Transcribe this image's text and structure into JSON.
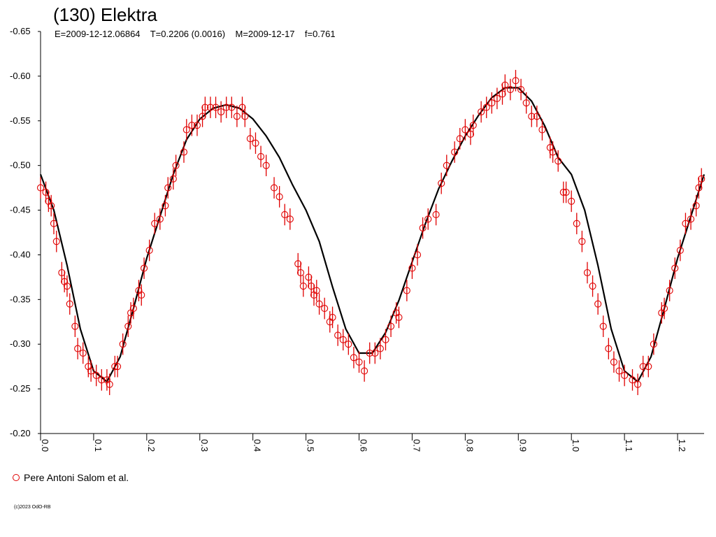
{
  "chart_data": {
    "type": "scatter",
    "title": "(130) Elektra",
    "subtitle": "E=2009-12-12.06864    T=0.2206 (0.0016)    M=2009-12-17    f=0.761",
    "footer": "(c)2023 OdO-RB",
    "xlim": [
      0,
      1.25
    ],
    "ylim": [
      -0.2,
      -0.65
    ],
    "xticks": [
      {
        "value": 0,
        "label": "0.0"
      },
      0.1,
      0.2,
      0.3,
      0.4,
      0.5,
      0.6,
      0.7,
      0.8,
      0.9,
      {
        "value": 1,
        "label": "1.0"
      },
      1.1,
      1.2
    ],
    "yticks": [
      -0.65,
      {
        "value": -0.6,
        "label": "-0.60"
      },
      -0.55,
      {
        "value": -0.5,
        "label": "-0.50"
      },
      -0.45,
      {
        "value": -0.4,
        "label": "-0.40"
      },
      -0.35,
      {
        "value": -0.3,
        "label": "-0.30"
      },
      -0.25,
      {
        "value": -0.2,
        "label": "-0.20"
      }
    ],
    "error": 0.012,
    "series": [
      {
        "name": "Pere Antoni Salom et al.",
        "color": "#e00000",
        "x": [
          0.0,
          0.01,
          0.015,
          0.02,
          0.025,
          0.03,
          0.04,
          0.045,
          0.05,
          0.055,
          0.065,
          0.07,
          0.08,
          0.09,
          0.095,
          0.105,
          0.115,
          0.125,
          0.13,
          0.14,
          0.145,
          0.155,
          0.165,
          0.17,
          0.175,
          0.185,
          0.19,
          0.195,
          0.205,
          0.215,
          0.225,
          0.235,
          0.24,
          0.25,
          0.255,
          0.27,
          0.275,
          0.285,
          0.295,
          0.305,
          0.31,
          0.32,
          0.33,
          0.34,
          0.35,
          0.36,
          0.37,
          0.38,
          0.385,
          0.395,
          0.405,
          0.415,
          0.425,
          0.44,
          0.45,
          0.46,
          0.47,
          0.485,
          0.49,
          0.495,
          0.505,
          0.51,
          0.515,
          0.52,
          0.525,
          0.535,
          0.545,
          0.55,
          0.56,
          0.57,
          0.58,
          0.59,
          0.6,
          0.61,
          0.62,
          0.63,
          0.64,
          0.65,
          0.66,
          0.67,
          0.675,
          0.69,
          0.7,
          0.71,
          0.72,
          0.73,
          0.745,
          0.755,
          0.765,
          0.78,
          0.79,
          0.8,
          0.81,
          0.815,
          0.83,
          0.84,
          0.85,
          0.86,
          0.87,
          0.875,
          0.885,
          0.895,
          0.905,
          0.915,
          0.925,
          0.935,
          0.945,
          0.96,
          0.965,
          0.975,
          0.985,
          0.99,
          1.0,
          1.01,
          1.02,
          1.03,
          1.04,
          1.05,
          1.06,
          1.07,
          1.08,
          1.09,
          1.1,
          1.115,
          1.125,
          1.135,
          1.145,
          1.155,
          1.17,
          1.175,
          1.185,
          1.195,
          1.205,
          1.215,
          1.225,
          1.235,
          1.24,
          1.245
        ],
        "values": [
          -0.475,
          -0.47,
          -0.46,
          -0.455,
          -0.435,
          -0.415,
          -0.38,
          -0.37,
          -0.365,
          -0.345,
          -0.32,
          -0.295,
          -0.29,
          -0.275,
          -0.27,
          -0.265,
          -0.26,
          -0.26,
          -0.255,
          -0.275,
          -0.275,
          -0.3,
          -0.32,
          -0.335,
          -0.34,
          -0.36,
          -0.355,
          -0.385,
          -0.405,
          -0.435,
          -0.44,
          -0.455,
          -0.475,
          -0.485,
          -0.5,
          -0.515,
          -0.54,
          -0.545,
          -0.545,
          -0.555,
          -0.565,
          -0.565,
          -0.565,
          -0.56,
          -0.565,
          -0.565,
          -0.555,
          -0.565,
          -0.555,
          -0.53,
          -0.525,
          -0.51,
          -0.5,
          -0.475,
          -0.465,
          -0.445,
          -0.44,
          -0.39,
          -0.38,
          -0.365,
          -0.375,
          -0.365,
          -0.355,
          -0.36,
          -0.345,
          -0.34,
          -0.325,
          -0.33,
          -0.31,
          -0.305,
          -0.3,
          -0.285,
          -0.28,
          -0.27,
          -0.29,
          -0.29,
          -0.295,
          -0.305,
          -0.32,
          -0.335,
          -0.33,
          -0.36,
          -0.385,
          -0.4,
          -0.43,
          -0.44,
          -0.445,
          -0.48,
          -0.5,
          -0.515,
          -0.53,
          -0.54,
          -0.535,
          -0.545,
          -0.56,
          -0.565,
          -0.57,
          -0.575,
          -0.58,
          -0.59,
          -0.585,
          -0.595,
          -0.585,
          -0.57,
          -0.555,
          -0.555,
          -0.54,
          -0.52,
          -0.515,
          -0.505,
          -0.47,
          -0.47,
          -0.46,
          -0.435,
          -0.415,
          -0.38,
          -0.365,
          -0.345,
          -0.32,
          -0.295,
          -0.28,
          -0.27,
          -0.265,
          -0.26,
          -0.255,
          -0.275,
          -0.275,
          -0.3,
          -0.335,
          -0.34,
          -0.36,
          -0.385,
          -0.405,
          -0.435,
          -0.44,
          -0.455,
          -0.475,
          -0.485
        ]
      }
    ],
    "curve": {
      "color": "#000000",
      "x": [
        0,
        0.025,
        0.05,
        0.075,
        0.1,
        0.125,
        0.15,
        0.175,
        0.2,
        0.225,
        0.25,
        0.275,
        0.3,
        0.325,
        0.35,
        0.375,
        0.4,
        0.425,
        0.45,
        0.475,
        0.5,
        0.525,
        0.55,
        0.575,
        0.6,
        0.625,
        0.65,
        0.675,
        0.7,
        0.725,
        0.75,
        0.775,
        0.8,
        0.825,
        0.85,
        0.875,
        0.9,
        0.925,
        0.95,
        0.975,
        1,
        1.025,
        1.05,
        1.075,
        1.1,
        1.125,
        1.15,
        1.175,
        1.2,
        1.225,
        1.25
      ],
      "values": [
        -0.49,
        -0.45,
        -0.388,
        -0.317,
        -0.27,
        -0.258,
        -0.286,
        -0.34,
        -0.396,
        -0.443,
        -0.49,
        -0.529,
        -0.552,
        -0.564,
        -0.568,
        -0.564,
        -0.552,
        -0.533,
        -0.509,
        -0.478,
        -0.45,
        -0.415,
        -0.364,
        -0.317,
        -0.29,
        -0.29,
        -0.313,
        -0.349,
        -0.392,
        -0.435,
        -0.474,
        -0.505,
        -0.533,
        -0.556,
        -0.576,
        -0.587,
        -0.587,
        -0.572,
        -0.544,
        -0.509,
        -0.49,
        -0.45,
        -0.388,
        -0.317,
        -0.27,
        -0.258,
        -0.286,
        -0.34,
        -0.396,
        -0.443,
        -0.49
      ]
    }
  }
}
